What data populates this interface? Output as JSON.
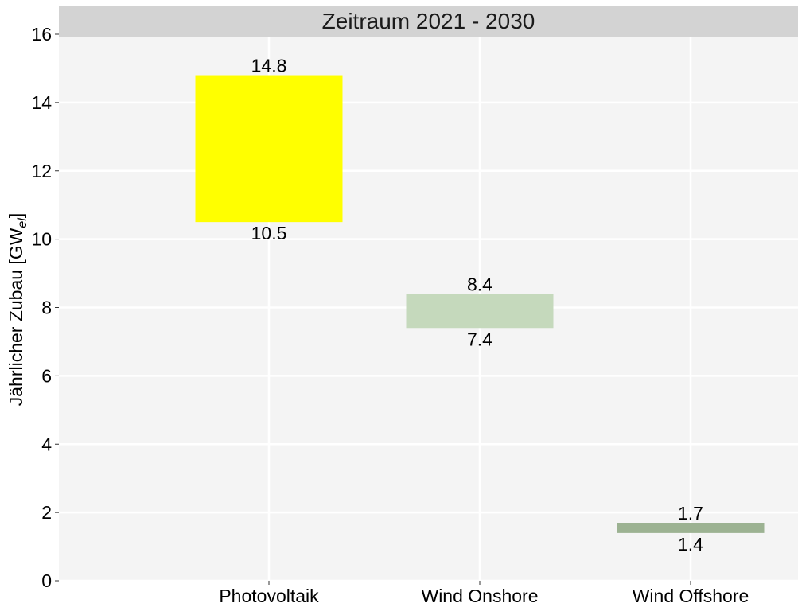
{
  "chart_data": {
    "type": "bar",
    "subtype": "floating-range",
    "facet_title": "Zeitraum 2021 - 2030",
    "ylabel": "Jährlicher Zubau [GW",
    "ylabel_subscript": "el",
    "ylabel_close": "]",
    "xlabel": "",
    "categories": [
      "Photovoltaik",
      "Wind Onshore",
      "Wind Offshore"
    ],
    "ranges": [
      {
        "category": "Photovoltaik",
        "low": 10.5,
        "high": 14.8,
        "color": "#FFFF00"
      },
      {
        "category": "Wind Onshore",
        "low": 7.4,
        "high": 8.4,
        "color": "#C5D9BC"
      },
      {
        "category": "Wind Offshore",
        "low": 1.4,
        "high": 1.7,
        "color": "#9CB292"
      }
    ],
    "yticks": [
      0,
      2,
      4,
      6,
      8,
      10,
      12,
      14,
      16
    ],
    "ylim": [
      0,
      16.8
    ],
    "grid": true,
    "legend": "none",
    "colors": {
      "panel": "#F4F4F4",
      "strip": "#D3D3D3",
      "grid": "#FFFFFF"
    }
  }
}
